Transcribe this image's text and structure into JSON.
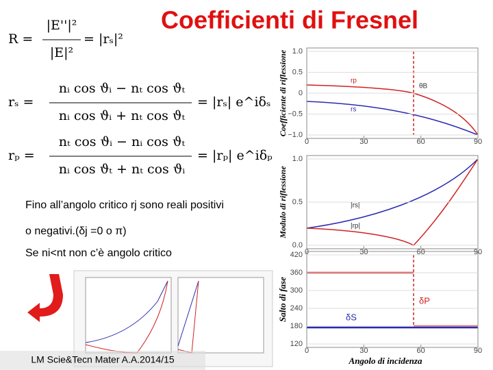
{
  "title": "Coefficienti di Fresnel",
  "formulas": [
    {
      "lhs": "R =",
      "num": "|E''|²",
      "den": "|E|²",
      "rhs": "= |rₛ|²"
    },
    {
      "lhs": "rₛ =",
      "num": "nᵢ cos ϑᵢ − nₜ cos ϑₜ",
      "den": "nᵢ cos ϑᵢ + nₜ cos ϑₜ",
      "rhs": "= |rₛ| e^iδₛ"
    },
    {
      "lhs": "rₚ =",
      "num": "nₜ cos ϑᵢ − nᵢ cos ϑₜ",
      "den": "nᵢ cos ϑₜ + nₜ cos ϑᵢ",
      "rhs": "= |rₚ| e^iδₚ"
    }
  ],
  "body": [
    "Fino all’angolo critico rj sono reali positivi",
    "o negativi.(δj =0 o π)",
    "Se ni<nt non c’è angolo critico"
  ],
  "footer": "LM Scie&Tecn Mater A.A.2014/15",
  "charts": [
    {
      "ylabel": "Coefficiente di riflessione",
      "xlim": [
        0,
        90
      ],
      "xticks": [
        0,
        30,
        60,
        90
      ],
      "ylim": [
        -1,
        1
      ],
      "yticks": [
        {
          "value": 1,
          "label": "1.0"
        },
        {
          "value": 0.5,
          "label": "0.5"
        },
        0,
        {
          "value": -0.5,
          "label": "−0.5"
        },
        {
          "value": -1,
          "label": "−1.0"
        }
      ],
      "labels": [
        "rp",
        "rs",
        "θB"
      ]
    },
    {
      "ylabel": "Modulo di riflessione",
      "xlim": [
        0,
        90
      ],
      "xticks": [
        0,
        30,
        60,
        90
      ],
      "ylim": [
        0,
        1
      ],
      "yticks": [
        {
          "value": 1,
          "label": "1.0"
        },
        {
          "value": 0.5,
          "label": "0.5"
        },
        {
          "value": 0,
          "label": "0.0"
        }
      ],
      "labels": [
        "|rs|",
        "|rp|"
      ]
    },
    {
      "ylabel": "Salto di fase",
      "xlabel": "Angolo di incidenza",
      "xlim": [
        0,
        90
      ],
      "xticks": [
        0,
        30,
        60,
        90
      ],
      "ylim": [
        120,
        420
      ],
      "yticks": [
        420,
        360,
        300,
        240,
        180,
        120
      ],
      "labels": [
        "δP",
        "δS"
      ]
    }
  ]
}
